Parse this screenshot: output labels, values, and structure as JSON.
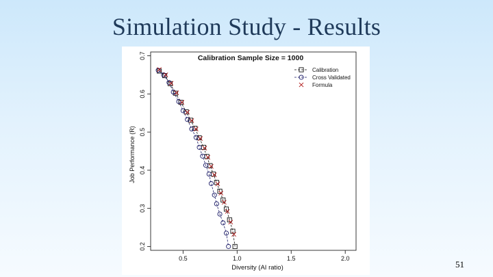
{
  "slide": {
    "title": "Simulation Study - Results",
    "page_number": "51"
  },
  "chart_data": {
    "type": "scatter",
    "title": "Calibration Sample Size = 1000",
    "xlabel": "Diversity (AI ratio)",
    "ylabel": "Job Performance (R)",
    "xlim": [
      0.2,
      2.1
    ],
    "ylim": [
      0.19,
      0.71
    ],
    "xticks": [
      "0.5",
      "1.0",
      "1.5",
      "2.0"
    ],
    "yticks": [
      "0.2",
      "0.3",
      "0.4",
      "0.5",
      "0.6",
      "0.7"
    ],
    "legend_position": "top-right",
    "series": [
      {
        "name": "Calibration",
        "marker": "square",
        "line": "dashed",
        "color": "#111111",
        "x": [
          0.28,
          0.33,
          0.38,
          0.43,
          0.48,
          0.53,
          0.57,
          0.61,
          0.65,
          0.69,
          0.72,
          0.75,
          0.78,
          0.81,
          0.84,
          0.87,
          0.9,
          0.93,
          0.96,
          0.98
        ],
        "y": [
          0.66,
          0.648,
          0.627,
          0.602,
          0.578,
          0.553,
          0.531,
          0.51,
          0.485,
          0.46,
          0.436,
          0.412,
          0.39,
          0.368,
          0.345,
          0.322,
          0.298,
          0.27,
          0.24,
          0.2
        ]
      },
      {
        "name": "Cross Validated",
        "marker": "circle",
        "line": "dashed",
        "color": "#1a1a66",
        "x": [
          0.27,
          0.32,
          0.37,
          0.41,
          0.46,
          0.5,
          0.54,
          0.58,
          0.62,
          0.65,
          0.68,
          0.71,
          0.74,
          0.76,
          0.79,
          0.81,
          0.84,
          0.87,
          0.9,
          0.92
        ],
        "y": [
          0.662,
          0.65,
          0.63,
          0.605,
          0.58,
          0.556,
          0.533,
          0.508,
          0.486,
          0.46,
          0.437,
          0.413,
          0.39,
          0.365,
          0.335,
          0.312,
          0.285,
          0.262,
          0.235,
          0.2
        ]
      },
      {
        "name": "Formula",
        "marker": "x",
        "line": "none",
        "color": "#b01818",
        "x": [
          0.28,
          0.34,
          0.39,
          0.44,
          0.49,
          0.54,
          0.58,
          0.62,
          0.66,
          0.7,
          0.73,
          0.76,
          0.79,
          0.82,
          0.85,
          0.88,
          0.91,
          0.94,
          0.97
        ],
        "y": [
          0.664,
          0.65,
          0.628,
          0.603,
          0.578,
          0.552,
          0.53,
          0.508,
          0.483,
          0.458,
          0.434,
          0.41,
          0.388,
          0.364,
          0.34,
          0.316,
          0.292,
          0.264,
          0.232
        ]
      }
    ]
  }
}
